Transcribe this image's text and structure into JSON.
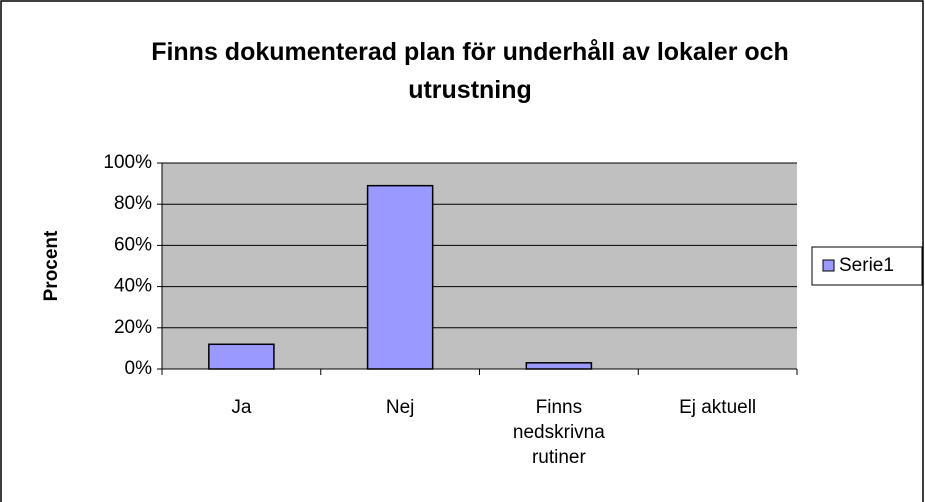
{
  "chart_data": {
    "type": "bar",
    "title": "Finns dokumenterad plan för underhåll av lokaler och utrustning",
    "y_label": "Procent",
    "categories": [
      "Ja",
      "Nej",
      "Finns nedskrivna rutiner",
      "Ej aktuell"
    ],
    "series": [
      {
        "name": "Serie1",
        "color": "#9999ff",
        "values": [
          12,
          89,
          3,
          0
        ]
      }
    ],
    "ylim": [
      0,
      100
    ],
    "yticks": [
      {
        "value": 0,
        "label": "0%"
      },
      {
        "value": 20,
        "label": "20%"
      },
      {
        "value": 40,
        "label": "40%"
      },
      {
        "value": 60,
        "label": "60%"
      },
      {
        "value": 80,
        "label": "80%"
      },
      {
        "value": 100,
        "label": "100%"
      }
    ],
    "grid": true,
    "plot_background": "#c0c0c0",
    "legend": "right"
  }
}
